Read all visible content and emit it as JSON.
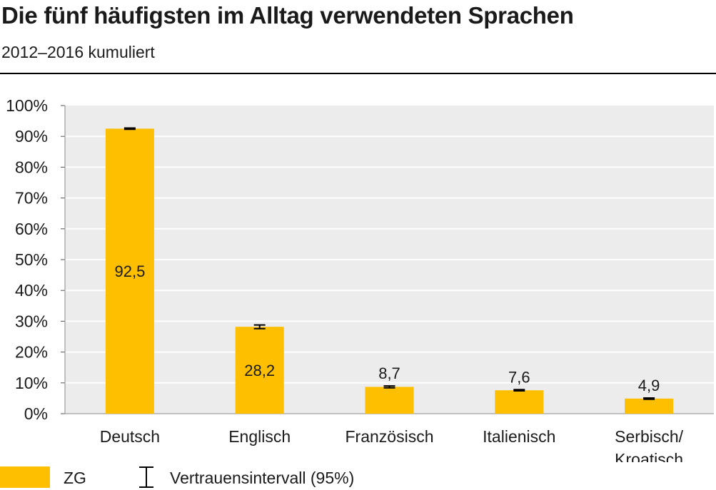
{
  "title": "Die fünf häufigsten im Alltag verwendeten Sprachen",
  "subtitle": "2012–2016 kumuliert",
  "colors": {
    "bar": "#fdbf00",
    "plot_background": "#ececec",
    "grid": "#ffffff",
    "error_bar": "#000000"
  },
  "legend": {
    "series_label": "ZG",
    "ci_label": "Vertrauensintervall (95%)",
    "placement": "bottom-left"
  },
  "chart_data": {
    "type": "bar",
    "categories": [
      "Deutsch",
      "Englisch",
      "Französisch",
      "Italienisch",
      "Serbisch/Kroatisch"
    ],
    "category_lines": [
      [
        "Deutsch"
      ],
      [
        "Englisch"
      ],
      [
        "Französisch"
      ],
      [
        "Italienisch"
      ],
      [
        "Serbisch/",
        "Kroatisch"
      ]
    ],
    "series": [
      {
        "name": "ZG",
        "values": [
          92.5,
          28.2,
          8.7,
          7.6,
          4.9
        ],
        "value_labels": [
          "92,5",
          "28,2",
          "8,7",
          "7,6",
          "4,9"
        ],
        "ci_low": [
          92.3,
          27.6,
          8.4,
          7.4,
          4.7
        ],
        "ci_high": [
          92.7,
          28.8,
          9.0,
          7.8,
          5.1
        ]
      }
    ],
    "ylim": [
      0,
      100
    ],
    "y_ticks": [
      "0%",
      "10%",
      "20%",
      "30%",
      "40%",
      "50%",
      "60%",
      "70%",
      "80%",
      "90%",
      "100%"
    ],
    "xlabel": "",
    "ylabel": "",
    "grid": true
  }
}
